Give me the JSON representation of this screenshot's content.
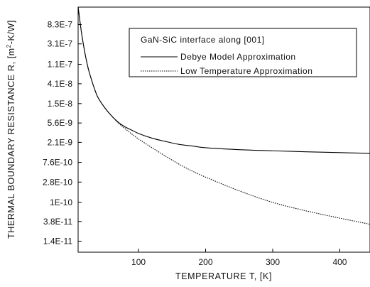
{
  "chart_data": {
    "type": "line",
    "title": "",
    "xlabel": "TEMPERATURE T, [K]",
    "ylabel_main": "THERMAL BOUNDARY RESISTANCE R, [m",
    "ylabel_sup": "2",
    "ylabel_tail": "-K/W]",
    "xlim": [
      10,
      445
    ],
    "ylim": [
      8e-12,
      2e-06
    ],
    "y_scale": "log",
    "grid": false,
    "x_ticks": [
      {
        "value": 100,
        "label": "100"
      },
      {
        "value": 200,
        "label": "200"
      },
      {
        "value": 300,
        "label": "300"
      },
      {
        "value": 400,
        "label": "400"
      }
    ],
    "y_ticks": [
      {
        "value": 8.3e-07,
        "label": "8.3E-7"
      },
      {
        "value": 3.1e-07,
        "label": "3.1E-7"
      },
      {
        "value": 1.1e-07,
        "label": "1.1E-7"
      },
      {
        "value": 4.1e-08,
        "label": "4.1E-8"
      },
      {
        "value": 1.5e-08,
        "label": "1.5E-8"
      },
      {
        "value": 5.6e-09,
        "label": "5.6E-9"
      },
      {
        "value": 2.1e-09,
        "label": "2.1E-9"
      },
      {
        "value": 7.6e-10,
        "label": "7.6E-10"
      },
      {
        "value": 2.8e-10,
        "label": "2.8E-10"
      },
      {
        "value": 1e-10,
        "label": "1E-10"
      },
      {
        "value": 3.8e-11,
        "label": "3.8E-11"
      },
      {
        "value": 1.4e-11,
        "label": "1.4E-11"
      }
    ],
    "legend": {
      "placement": "top-right",
      "header": "GaN-SiC interface along [001]"
    },
    "series": [
      {
        "name": "Debye Model Approximation",
        "style": "solid",
        "x": [
          10,
          15,
          20,
          25,
          30,
          35,
          40,
          50,
          60,
          70,
          80,
          90,
          100,
          120,
          140,
          160,
          180,
          200,
          250,
          300,
          350,
          400,
          445
        ],
        "y": [
          2e-06,
          5.5e-07,
          2e-07,
          9e-08,
          5e-08,
          3e-08,
          2e-08,
          1.2e-08,
          8e-09,
          5.8e-09,
          4.6e-09,
          3.9e-09,
          3.3e-09,
          2.6e-09,
          2.2e-09,
          1.9e-09,
          1.75e-09,
          1.6e-09,
          1.45e-09,
          1.37e-09,
          1.3e-09,
          1.25e-09,
          1.2e-09
        ]
      },
      {
        "name": "Low Temperature Approximation",
        "style": "dotted",
        "x": [
          10,
          15,
          20,
          25,
          30,
          35,
          40,
          50,
          60,
          70,
          80,
          90,
          100,
          120,
          140,
          160,
          180,
          200,
          250,
          300,
          350,
          400,
          445
        ],
        "y": [
          2e-06,
          5.5e-07,
          2e-07,
          9e-08,
          5e-08,
          3e-08,
          2e-08,
          1.2e-08,
          8e-09,
          5.6e-09,
          4.2e-09,
          3.2e-09,
          2.5e-09,
          1.6e-09,
          1.05e-09,
          7e-10,
          4.9e-10,
          3.6e-10,
          1.8e-10,
          1e-10,
          6.5e-11,
          4.5e-11,
          3.3e-11
        ]
      }
    ]
  }
}
